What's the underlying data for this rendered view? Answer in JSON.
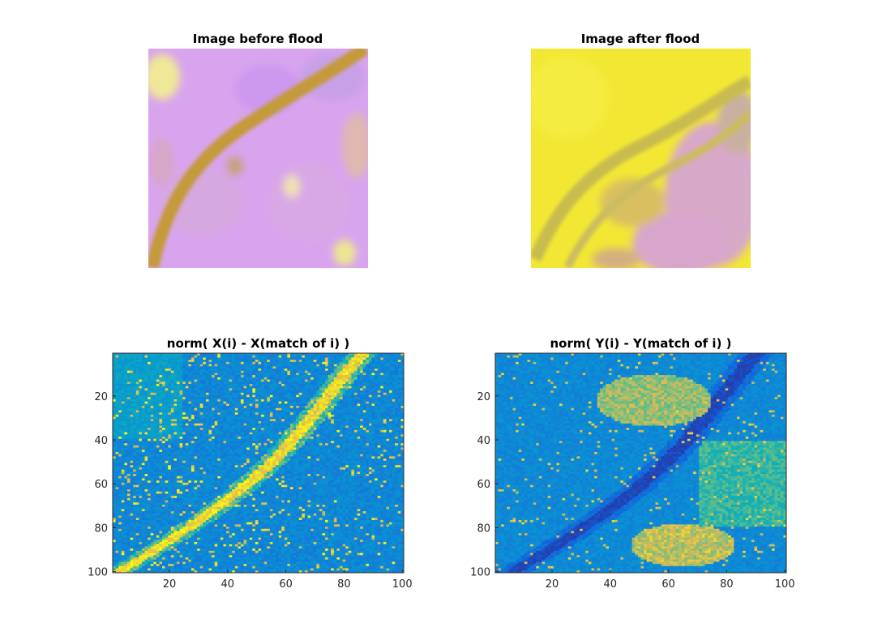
{
  "chart_data": [
    {
      "type": "image",
      "title": "Image before flood",
      "axes_visible": false,
      "description_colors": {
        "background": "#d6a0f0",
        "river": "#c09a3c",
        "highlights": "#f0e890"
      }
    },
    {
      "type": "image",
      "title": "Image after flood",
      "axes_visible": false,
      "description_colors": {
        "background": "#f2e830",
        "river": "#c4b848",
        "fields": "#d8a6d0"
      }
    },
    {
      "type": "heatmap",
      "title": "norm( X(i) - X(match of i) )",
      "xlim": [
        0.5,
        100.5
      ],
      "ylim": [
        0.5,
        100.5
      ],
      "y_reversed": true,
      "xticks": [
        20,
        40,
        60,
        80,
        100
      ],
      "yticks": [
        20,
        40,
        60,
        80,
        100
      ],
      "colormap": "parula"
    },
    {
      "type": "heatmap",
      "title": "norm( Y(i) - Y(match of i) )",
      "xlim": [
        0.5,
        100.5
      ],
      "ylim": [
        0.5,
        100.5
      ],
      "y_reversed": true,
      "xticks": [
        20,
        40,
        60,
        80,
        100
      ],
      "yticks": [
        20,
        40,
        60,
        80,
        100
      ],
      "colormap": "parula"
    }
  ]
}
